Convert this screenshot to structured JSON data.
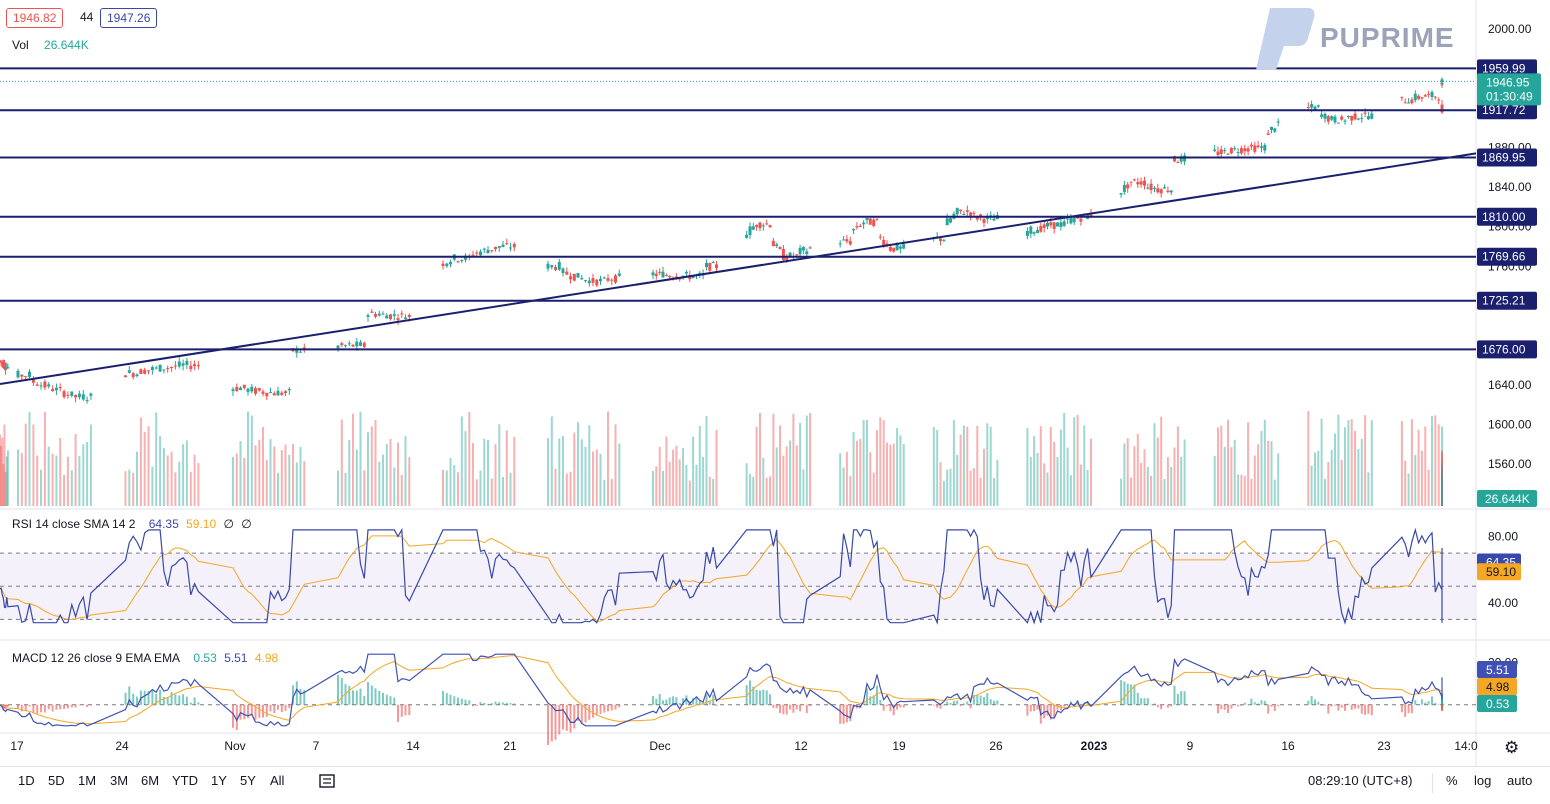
{
  "header": {
    "bid": "1946.82",
    "spread": "44",
    "ask": "1947.26",
    "vol_label": "Vol",
    "vol_value": "26.644K"
  },
  "logo": {
    "text": "PUPRIME"
  },
  "rsi_legend": {
    "title": "RSI 14 close SMA 14 2",
    "rsi": "64.35",
    "sma": "59.10",
    "v3": "∅",
    "v4": "∅"
  },
  "macd_legend": {
    "title": "MACD 12 26 close 9 EMA EMA",
    "hist": "0.53",
    "macd": "5.51",
    "signal": "4.98"
  },
  "price_labels": {
    "last": "1946.95",
    "countdown": "01:30:49",
    "volume": "26.644K",
    "rsi": "64.35",
    "rsi_sma": "59.10",
    "macd": "5.51",
    "signal": "4.98",
    "hist": "0.53"
  },
  "colors": {
    "up": "#26a69a",
    "down": "#ef5350",
    "level": "#1a1f6e",
    "rsi": "#3949ab",
    "rsi_sma": "#f5a623",
    "macd": "#3f51b5",
    "signal": "#f5a623"
  },
  "timeframes": [
    "1D",
    "5D",
    "1M",
    "3M",
    "6M",
    "YTD",
    "1Y",
    "5Y",
    "All"
  ],
  "bottom_right": {
    "time": "08:29:10 (UTC+8)",
    "percent": "%",
    "log": "log",
    "auto": "auto"
  },
  "chart_data": [
    {
      "type": "candlestick",
      "title": "",
      "x_tick_labels": [
        "17",
        "24",
        "Nov",
        "7",
        "14",
        "21",
        "Dec",
        "12",
        "19",
        "26",
        "2023",
        "9",
        "16",
        "23",
        "14:0"
      ],
      "y_ticks": [
        2000,
        1960,
        1920,
        1880,
        1840,
        1800,
        1760,
        1720,
        1680,
        1640,
        1600,
        1560
      ],
      "y_tick_labels": [
        "2000.00",
        "",
        "",
        "1880.00",
        "1840.00",
        "1800.00",
        "1760.00",
        "",
        "",
        "1640.00",
        "1600.00",
        "1560.00"
      ],
      "ylim": [
        1543,
        2016
      ],
      "horizontal_levels": [
        1959.99,
        1917.72,
        1869.95,
        1810.0,
        1769.66,
        1725.21,
        1676.0
      ],
      "horizontal_level_labels": [
        "1959.99",
        "1917.72",
        "1869.95",
        "1810.00",
        "1769.66",
        "1725.21",
        "1676.00"
      ],
      "trendline": {
        "start": [
          "Oct 13",
          1641
        ],
        "end": [
          "Jan 27",
          1866
        ]
      },
      "current_price": 1946.95,
      "close_anchors": [
        [
          "Oct 13",
          1665
        ],
        [
          "Oct 17",
          1650
        ],
        [
          "Oct 21",
          1628
        ],
        [
          "Oct 24",
          1652
        ],
        [
          "Oct 28",
          1660
        ],
        [
          "Oct 31",
          1637
        ],
        [
          "Nov 3",
          1632
        ],
        [
          "Nov 4",
          1675
        ],
        [
          "Nov 8",
          1680
        ],
        [
          "Nov 9",
          1712
        ],
        [
          "Nov 11",
          1710
        ],
        [
          "Nov 12",
          1750
        ],
        [
          "Nov 15",
          1768
        ],
        [
          "Nov 18",
          1780
        ],
        [
          "Nov 21",
          1760
        ],
        [
          "Nov 24",
          1745
        ],
        [
          "Nov 28",
          1752
        ],
        [
          "Dec 1",
          1750
        ],
        [
          "Dec 2",
          1760
        ],
        [
          "Dec 4",
          1780
        ],
        [
          "Dec 6",
          1803
        ],
        [
          "Dec 8",
          1770
        ],
        [
          "Dec 12",
          1785
        ],
        [
          "Dec 14",
          1805
        ],
        [
          "Dec 16",
          1778
        ],
        [
          "Dec 19",
          1788
        ],
        [
          "Dec 21",
          1815
        ],
        [
          "Dec 23",
          1808
        ],
        [
          "Dec 25",
          1790
        ],
        [
          "Dec 28",
          1802
        ],
        [
          "Dec 31",
          1812
        ],
        [
          "Jan 3",
          1845
        ],
        [
          "Jan 5",
          1838
        ],
        [
          "Jan 6",
          1868
        ],
        [
          "Jan 9",
          1875
        ],
        [
          "Jan 12",
          1880
        ],
        [
          "Jan 14",
          1905
        ],
        [
          "Jan 16",
          1920
        ],
        [
          "Jan 18",
          1908
        ],
        [
          "Jan 20",
          1912
        ],
        [
          "Jan 23",
          1928
        ],
        [
          "Jan 25",
          1932
        ],
        [
          "Jan 26",
          1920
        ],
        [
          "Jan 27",
          1946.95
        ]
      ]
    },
    {
      "type": "bar",
      "title": "Vol",
      "last_value": "26.644K"
    },
    {
      "type": "line",
      "title": "RSI 14 close SMA 14 2",
      "ylim": [
        20,
        90
      ],
      "y_tick_labels": [
        "80.00",
        "40.00"
      ],
      "bands": [
        70,
        30
      ],
      "series": [
        {
          "name": "RSI",
          "last": 64.35
        },
        {
          "name": "SMA",
          "last": 59.1
        }
      ]
    },
    {
      "type": "line",
      "title": "MACD 12 26 close 9 EMA EMA",
      "ylim": [
        -12,
        26
      ],
      "y_tick_labels": [
        "20.00"
      ],
      "series": [
        {
          "name": "MACD",
          "last": 5.51
        },
        {
          "name": "Signal",
          "last": 4.98
        },
        {
          "name": "Histogram",
          "last": 0.53
        }
      ]
    }
  ]
}
